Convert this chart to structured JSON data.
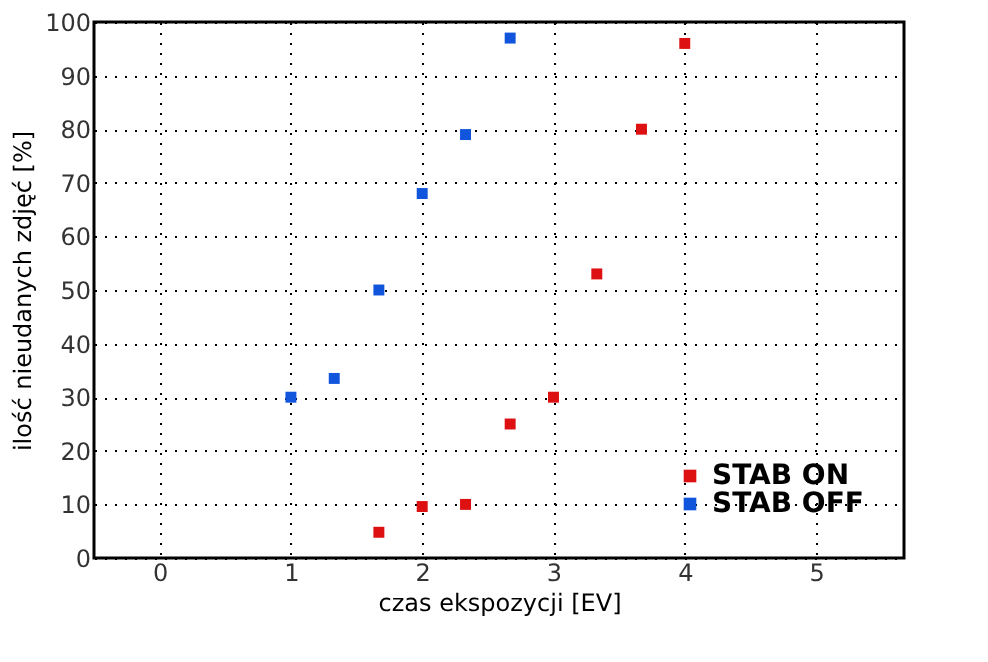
{
  "chart_data": {
    "type": "scatter",
    "xlabel": "czas ekspozycji [EV]",
    "ylabel": "ilość nieudanych zdjęć [%]",
    "xlim": [
      -0.5,
      5.67
    ],
    "xticks": [
      0,
      1,
      2,
      3,
      4,
      5
    ],
    "ylim": [
      0,
      100
    ],
    "yticks": [
      0,
      10,
      20,
      30,
      40,
      50,
      60,
      70,
      80,
      90,
      100
    ],
    "grid": true,
    "legend": "bottom right",
    "marker": "square",
    "series": [
      {
        "name": "STAB ON",
        "color": "#dd1111",
        "x": [
          1.67,
          2,
          2.33,
          2.67,
          3,
          3.33,
          3.67,
          4
        ],
        "values": [
          4.8,
          9.6,
          10,
          25,
          30,
          53,
          80,
          96
        ]
      },
      {
        "name": "STAB OFF",
        "color": "#1155dd",
        "x": [
          1,
          1.33,
          1.67,
          2,
          2.33,
          2.67
        ],
        "values": [
          30,
          33.5,
          50,
          68,
          79,
          97
        ]
      }
    ]
  }
}
